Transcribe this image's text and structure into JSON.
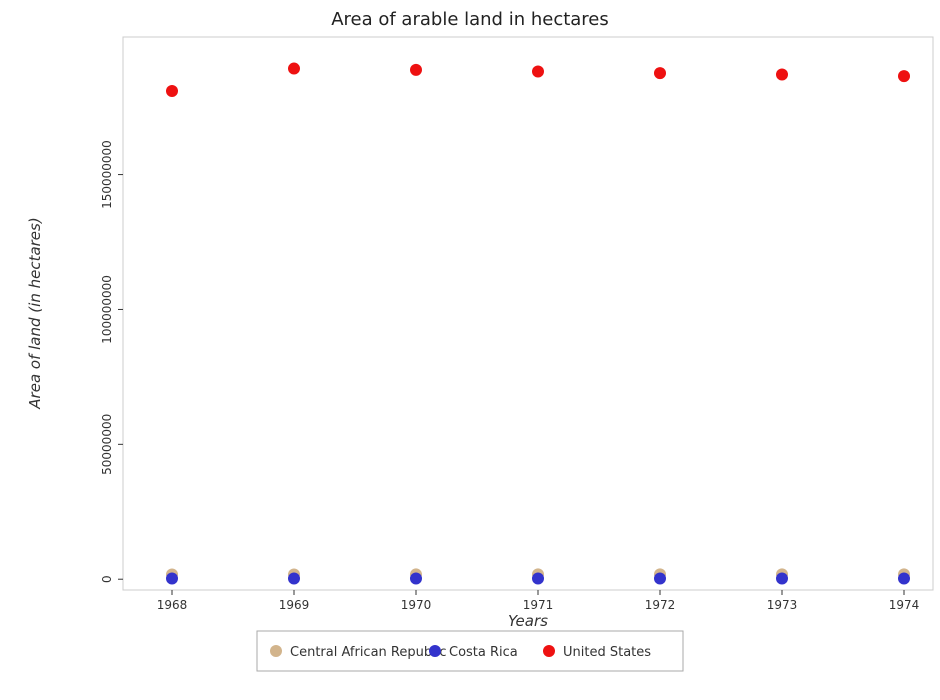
{
  "chart_data": {
    "type": "scatter",
    "title": "Area of arable land in hectares",
    "xlabel": "Years",
    "ylabel": "Area of land (in hectares)",
    "categories": [
      "1968",
      "1969",
      "1970",
      "1971",
      "1972",
      "1973",
      "1974"
    ],
    "y_ticks": [
      0,
      50000000,
      100000000,
      150000000
    ],
    "y_tick_labels": [
      "0",
      "50000000",
      "100000000",
      "150000000"
    ],
    "ylim": [
      -4000000,
      201000000
    ],
    "grid": false,
    "legend_position": "bottom-center",
    "series": [
      {
        "name": "Central African Republic",
        "color": "#d2b48c",
        "values": [
          1750000,
          1760000,
          1770000,
          1780000,
          1790000,
          1800000,
          1810000
        ]
      },
      {
        "name": "Costa Rica",
        "color": "#3333cc",
        "values": [
          270000,
          275000,
          280000,
          280000,
          283000,
          283000,
          283000
        ]
      },
      {
        "name": "United States",
        "color": "#ee1111",
        "values": [
          181000000,
          189300000,
          188800000,
          188200000,
          187600000,
          187100000,
          186500000
        ]
      }
    ]
  }
}
